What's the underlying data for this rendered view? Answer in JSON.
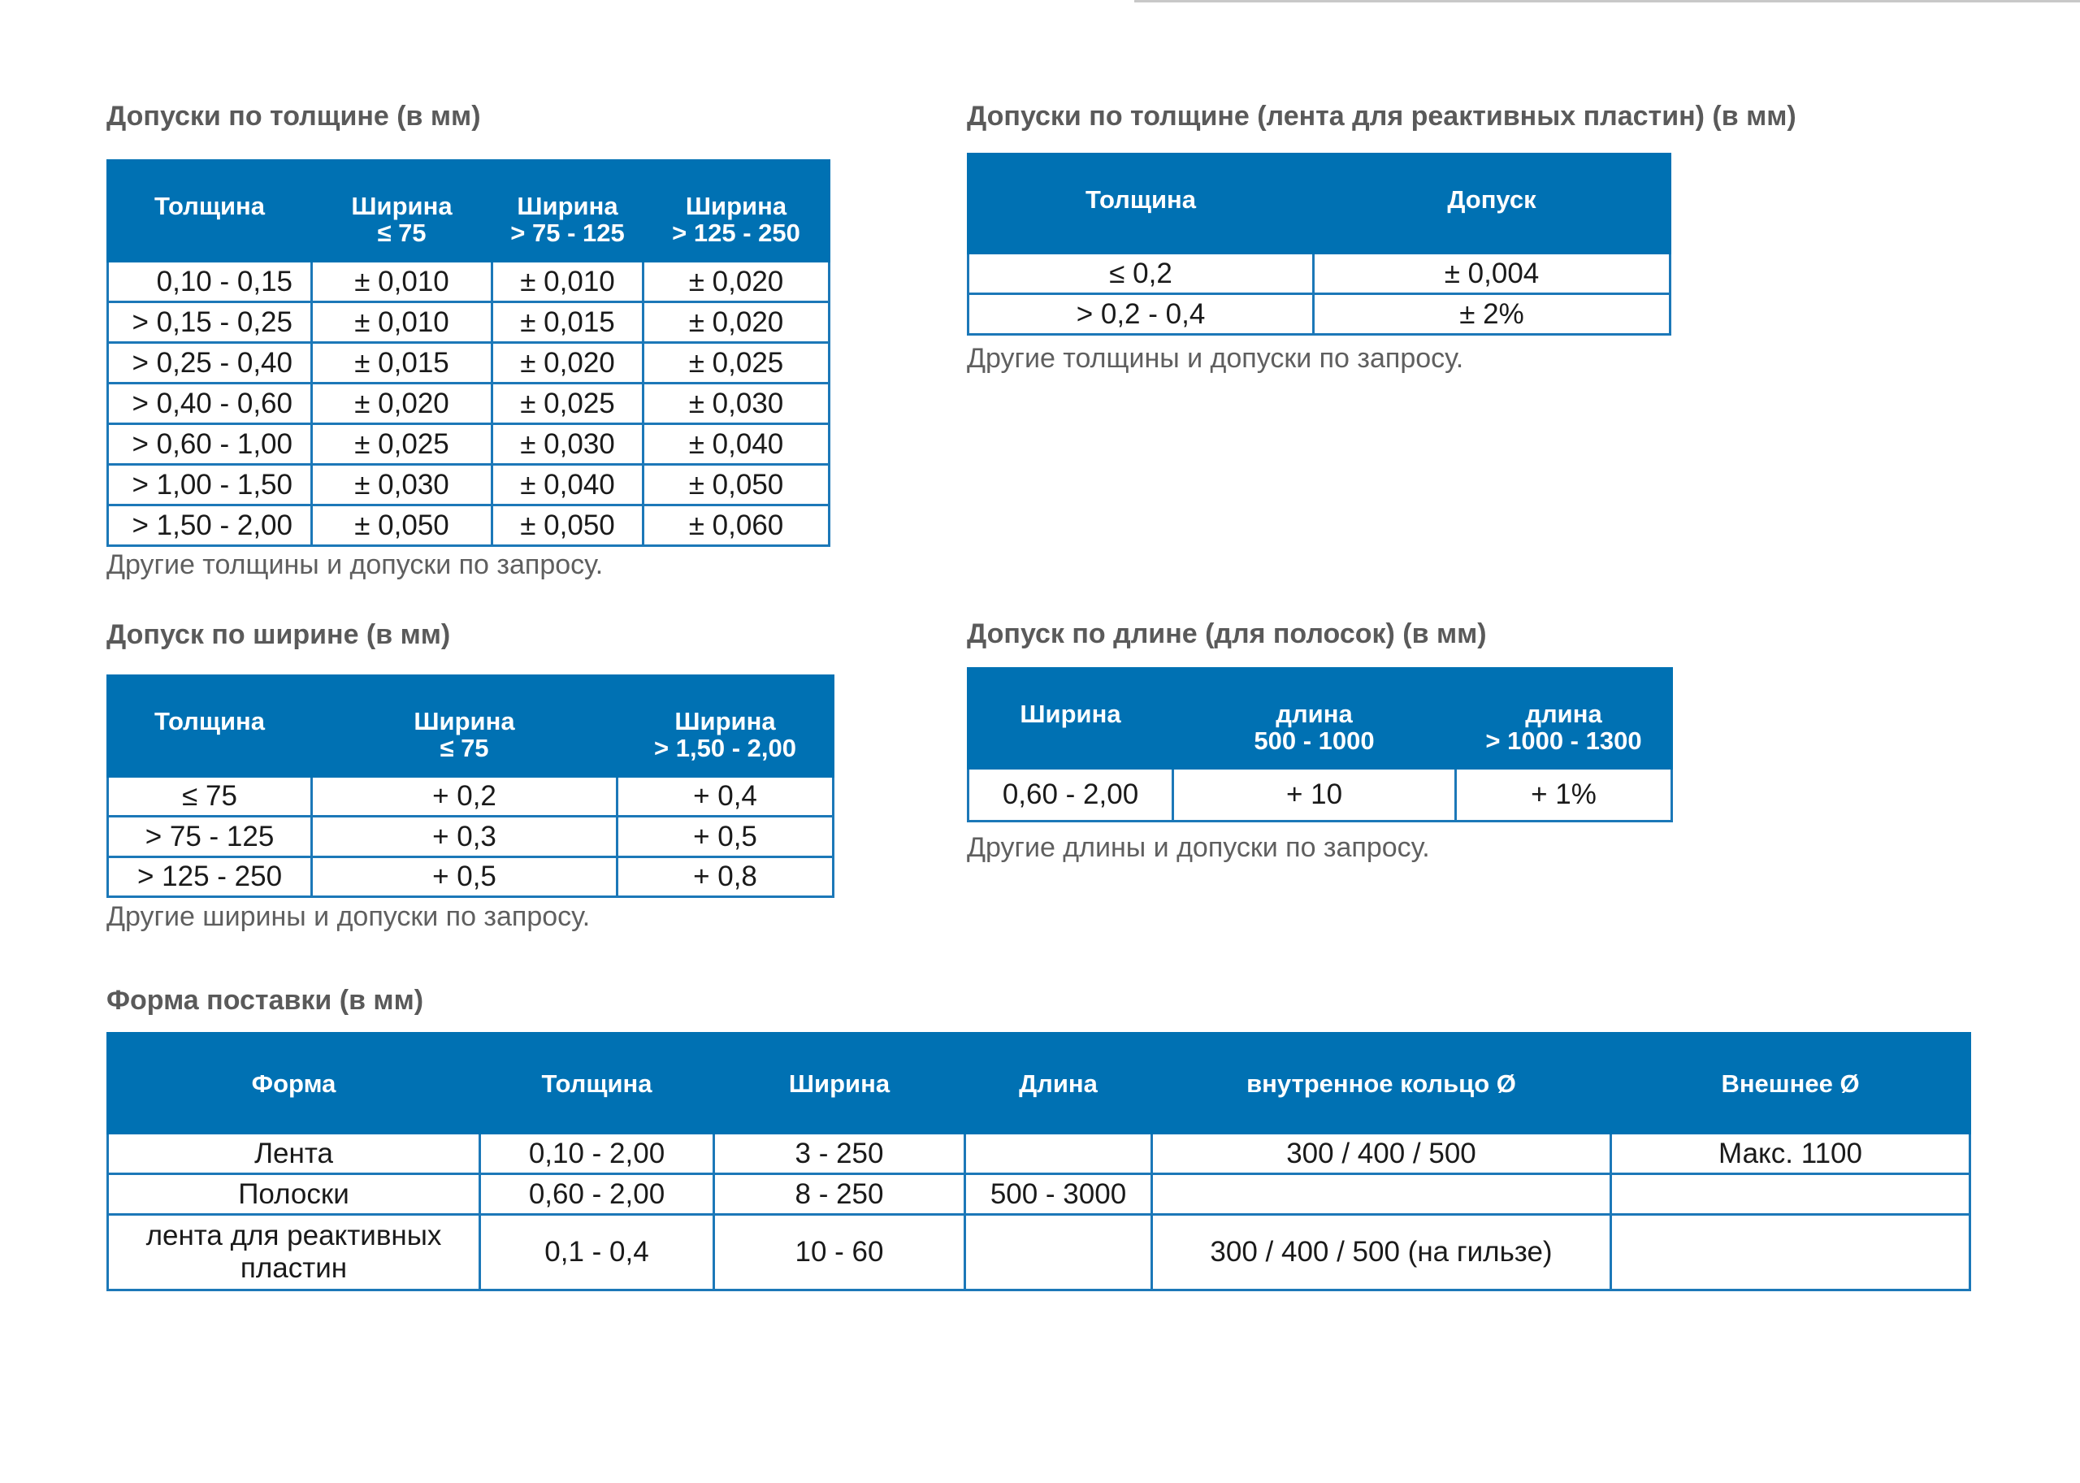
{
  "colors": {
    "header_bg": "#0071b3",
    "border": "#1c78b8",
    "title": "#5a5a5a"
  },
  "thickness": {
    "title": "Допуски по толщине (в мм)",
    "headers": [
      "Толщина",
      "Ширина\n≤ 75",
      "Ширина\n> 75 - 125",
      "Ширина\n> 125 - 250"
    ],
    "rows": [
      [
        "0,10 - 0,15",
        "± 0,010",
        "± 0,010",
        "± 0,020"
      ],
      [
        "> 0,15 - 0,25",
        "± 0,010",
        "± 0,015",
        "± 0,020"
      ],
      [
        "> 0,25 - 0,40",
        "± 0,015",
        "± 0,020",
        "± 0,025"
      ],
      [
        "> 0,40 - 0,60",
        "± 0,020",
        "± 0,025",
        "± 0,030"
      ],
      [
        "> 0,60 - 1,00",
        "± 0,025",
        "± 0,030",
        "± 0,040"
      ],
      [
        "> 1,00 - 1,50",
        "± 0,030",
        "± 0,040",
        "± 0,050"
      ],
      [
        "> 1,50 - 2,00",
        "± 0,050",
        "± 0,050",
        "± 0,060"
      ]
    ],
    "note": "Другие толщины и допуски по запросу."
  },
  "reactive": {
    "title": "Допуски по толщине (лента для реактивных пластин) (в мм)",
    "headers": [
      "Толщина",
      "Допуск"
    ],
    "rows": [
      [
        "≤ 0,2",
        "± 0,004"
      ],
      [
        "> 0,2 - 0,4",
        "± 2%"
      ]
    ],
    "note": "Другие толщины и допуски по запросу."
  },
  "width": {
    "title": "Допуск по ширине (в мм)",
    "headers": [
      "Толщина",
      "Ширина\n≤ 75",
      "Ширина\n> 1,50 - 2,00"
    ],
    "rows": [
      [
        "≤ 75",
        "+ 0,2",
        "+ 0,4"
      ],
      [
        "> 75 - 125",
        "+ 0,3",
        "+ 0,5"
      ],
      [
        "> 125 - 250",
        "+ 0,5",
        "+ 0,8"
      ]
    ],
    "note": "Другие ширины и допуски по запросу."
  },
  "length": {
    "title": "Допуск по длине (для полосок) (в мм)",
    "headers": [
      "Ширина",
      "длина\n500 - 1000",
      "длина\n> 1000 - 1300"
    ],
    "rows": [
      [
        "0,60 - 2,00",
        "+ 10",
        "+ 1%"
      ]
    ],
    "note": "Другие длины и допуски по запросу."
  },
  "delivery": {
    "title": "Форма поставки (в мм)",
    "headers": [
      "Форма",
      "Толщина",
      "Ширина",
      "Длина",
      "внутренное кольцо Ø",
      "Внешнее Ø"
    ],
    "rows": [
      [
        "Лента",
        "0,10 - 2,00",
        "3 - 250",
        "",
        "300 / 400 / 500",
        "Макс. 1100"
      ],
      [
        "Полоски",
        "0,60 - 2,00",
        "8 - 250",
        "500 - 3000",
        "",
        ""
      ],
      [
        "лента для реактивных пластин",
        "0,1 - 0,4",
        "10 - 60",
        "",
        "300 / 400 / 500 (на гильзе)",
        ""
      ]
    ]
  }
}
